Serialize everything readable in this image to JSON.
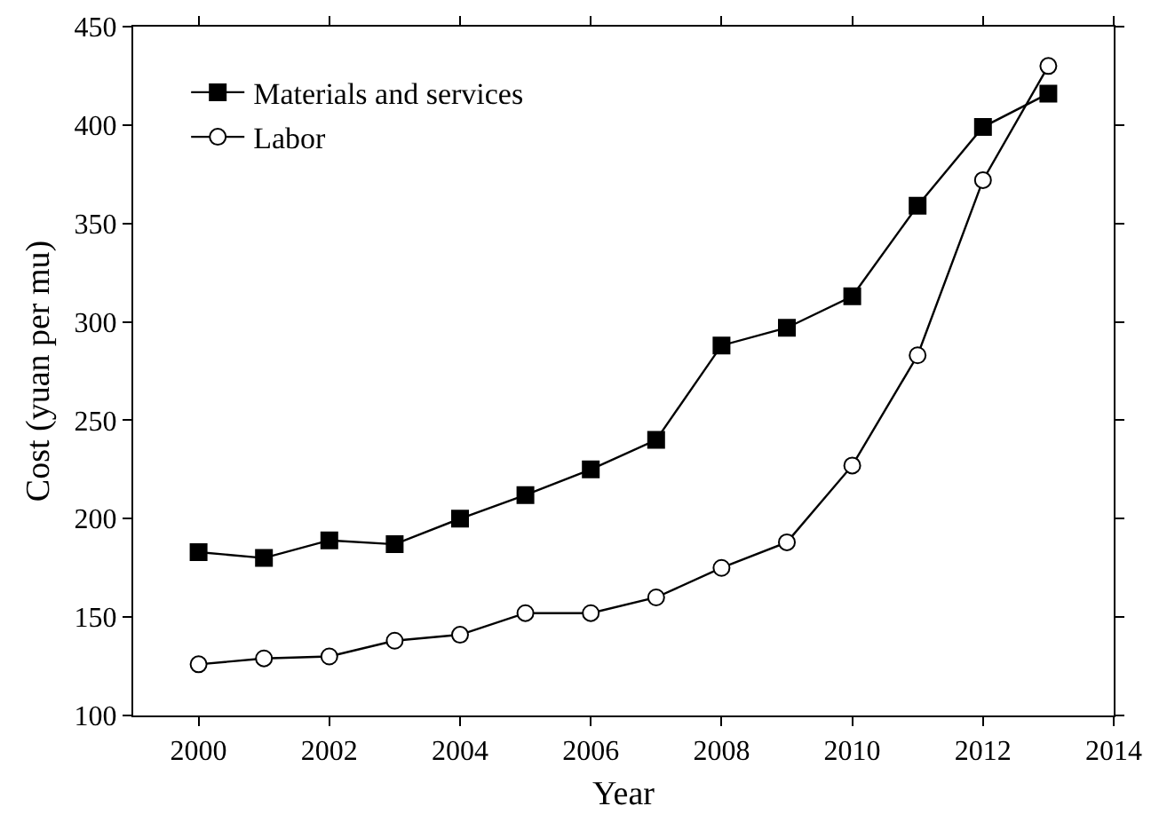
{
  "chart_data": {
    "type": "line",
    "xlabel": "Year",
    "ylabel": "Cost (yuan per mu)",
    "x": [
      2000,
      2001,
      2002,
      2003,
      2004,
      2005,
      2006,
      2007,
      2008,
      2009,
      2010,
      2011,
      2012,
      2013
    ],
    "series": [
      {
        "name": "Materials and services",
        "color": "#000000",
        "marker": "square",
        "values": [
          183,
          180,
          189,
          187,
          200,
          212,
          225,
          240,
          288,
          297,
          313,
          359,
          399,
          416
        ]
      },
      {
        "name": "Labor",
        "color": "#000000",
        "marker": "circle",
        "values": [
          126,
          129,
          130,
          138,
          141,
          152,
          152,
          160,
          175,
          188,
          227,
          283,
          372,
          430
        ]
      }
    ],
    "xlim": [
      1999,
      2014
    ],
    "xticks": [
      2000,
      2002,
      2004,
      2006,
      2008,
      2010,
      2012,
      2014
    ],
    "ylim": [
      100,
      450
    ],
    "yticks": [
      100,
      150,
      200,
      250,
      300,
      350,
      400,
      450
    ],
    "grid": false,
    "legend": "top left",
    "line_style": "solid"
  }
}
